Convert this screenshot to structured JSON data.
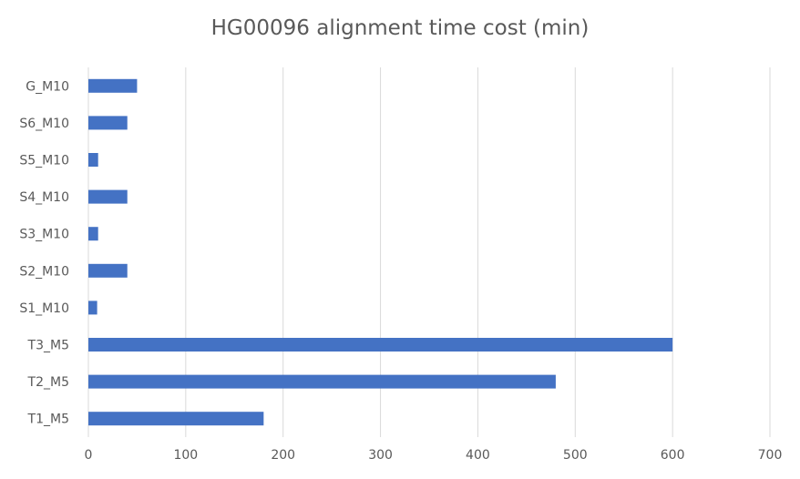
{
  "chart_data": {
    "type": "bar",
    "orientation": "horizontal",
    "title": "HG00096 alignment time cost (min)",
    "categories": [
      "G_M10",
      "S6_M10",
      "S5_M10",
      "S4_M10",
      "S3_M10",
      "S2_M10",
      "S1_M10",
      "T3_M5",
      "T2_M5",
      "T1_M5"
    ],
    "values": [
      50,
      40,
      10,
      40,
      10,
      40,
      9,
      600,
      480,
      180
    ],
    "xlim": [
      0,
      700
    ],
    "xticks": [
      0,
      100,
      200,
      300,
      400,
      500,
      600,
      700
    ],
    "grid": true,
    "legend": "none",
    "bar_color": "#4472C4",
    "grid_color": "#D9D9D9"
  }
}
